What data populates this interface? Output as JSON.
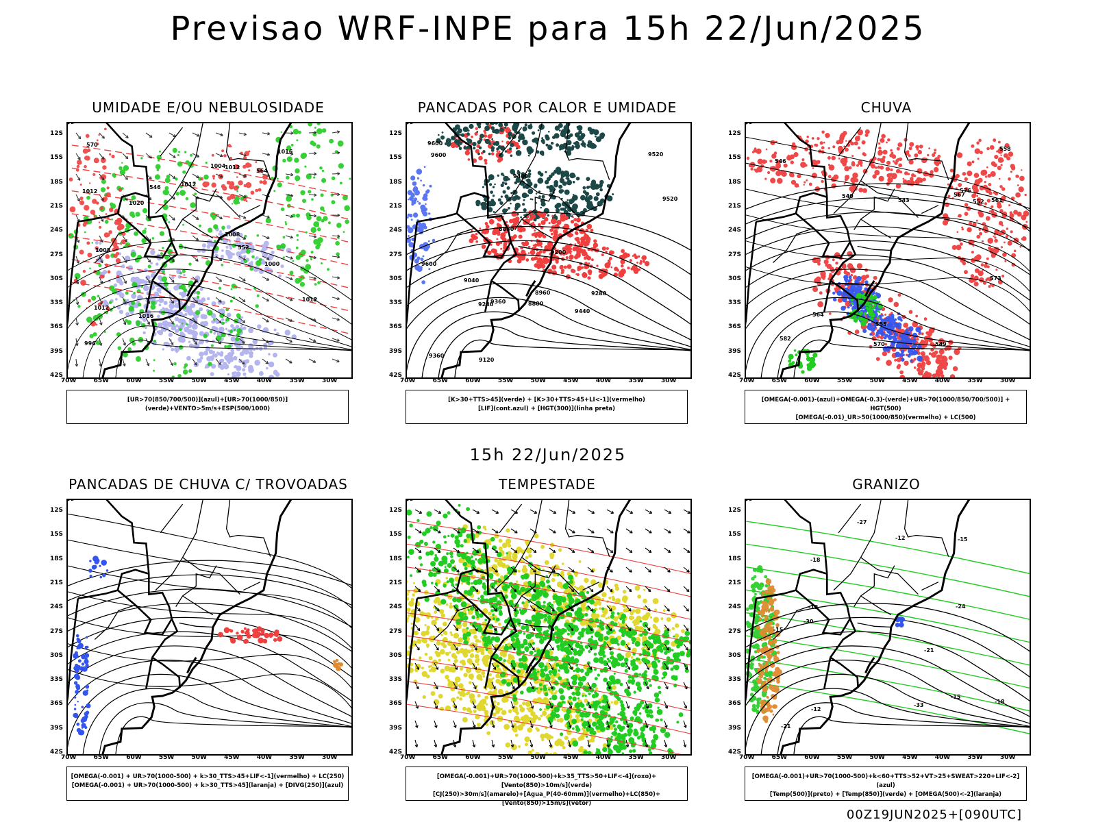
{
  "header": {
    "title": "Previsao WRF-INPE  para 15h 22/Jun/2025",
    "mid_stamp": "15h 22/Jun/2025",
    "run_stamp": "00Z19JUN2025+[090UTC]"
  },
  "axes": {
    "lat_labels": [
      "12S",
      "15S",
      "18S",
      "21S",
      "24S",
      "27S",
      "30S",
      "33S",
      "36S",
      "39S",
      "42S"
    ],
    "lon_labels": [
      "70W",
      "65W",
      "60W",
      "55W",
      "50W",
      "45W",
      "40W",
      "35W",
      "30W"
    ]
  },
  "colors": {
    "red": "#ef3f3f",
    "green": "#22cc22",
    "blue": "#3355ee",
    "lavender": "#9b9bea",
    "darkteal": "#1d4848",
    "yellow": "#e0d830",
    "orange": "#e08a30"
  },
  "panels": [
    {
      "key": "umidade",
      "title": "UMIDADE E/OU NEBULOSIDADE",
      "legend_lines": [
        "[UR>70(850/700/500)](azul)+[UR>70(1000/850)](verde)+VENTO>5m/s+ESP(500/1000)"
      ],
      "contour_labels": [
        "1012",
        "1016",
        "1008",
        "1012",
        "1020",
        "1012",
        "1016",
        "1008",
        "1012",
        "1004",
        "1000",
        "996",
        "1012",
        "570",
        "552",
        "546",
        "564"
      ]
    },
    {
      "key": "pancadas_calor",
      "title": "PANCADAS POR CALOR E UMIDADE",
      "legend_lines": [
        "[K>30+TTS>45](verde) + [K>30+TTS>45+LI<-1](vermelho)",
        "[LIF](cont.azul) + [HGT(300)](linha preta)"
      ],
      "contour_labels": [
        "9600",
        "9600",
        "9600",
        "9520",
        "9520",
        "9440",
        "9440",
        "9360",
        "9360",
        "9280",
        "9280",
        "9200",
        "9120",
        "9040",
        "8960",
        "8880",
        "8800"
      ]
    },
    {
      "key": "chuva",
      "title": "CHUVA",
      "legend_lines": [
        "[OMEGA(-0.001)-(azul)+OMEGA(-0.3)-(verde)+UR>70(1000/850/700/500)] + HGT(500)",
        "[OMEGA(-0.01)_UR>50(1000/850)(vermelho) + LC(500)"
      ],
      "contour_labels": [
        "582",
        "576",
        "573",
        "570",
        "567",
        "564",
        "561",
        "558",
        "555",
        "552",
        "549",
        "546",
        "543",
        "540"
      ]
    },
    {
      "key": "pancadas_trovoadas",
      "title": "PANCADAS DE CHUVA C/ TROVOADAS",
      "legend_lines": [
        "[OMEGA(-0.001) + UR>70(1000-500) + k>30_TTS>45+LIF<-1](vermelho) + LC(250)",
        "[OMEGA(-0.001) + UR>70(1000-500) + k>30_TTS>45](laranja) + [DIVG(250)](azul)"
      ],
      "contour_labels": []
    },
    {
      "key": "tempestade",
      "title": "TEMPESTADE",
      "legend_lines": [
        "[OMEGA(-0.001)+UR>70(1000-500)+k>35_TTS>50+LIF<-4](roxo)+[Vento(850)>10m/s](verde)",
        "[CJ(250)>30m/s](amarelo)+[Agua_P(40-60mm)](vermelho)+LC(850)+[Vento(850)>15m/s](vetor)"
      ],
      "contour_labels": []
    },
    {
      "key": "granizo",
      "title": "GRANIZO",
      "legend_lines": [
        "[OMEGA(-0.001)+UR>70(1000-500)+k<60+TTS>52+VT>25+SWEAT>220+LIF<-2](azul)",
        "[Temp(500)](preto) + [Temp(850)](verde) + [OMEGA(500)<-2](laranja)"
      ],
      "contour_labels": [
        "-12",
        "-12",
        "-15",
        "-15",
        "-18",
        "-18",
        "-21",
        "-21",
        "-24",
        "-27",
        "-30",
        "-33",
        "-12",
        "-15"
      ]
    }
  ]
}
